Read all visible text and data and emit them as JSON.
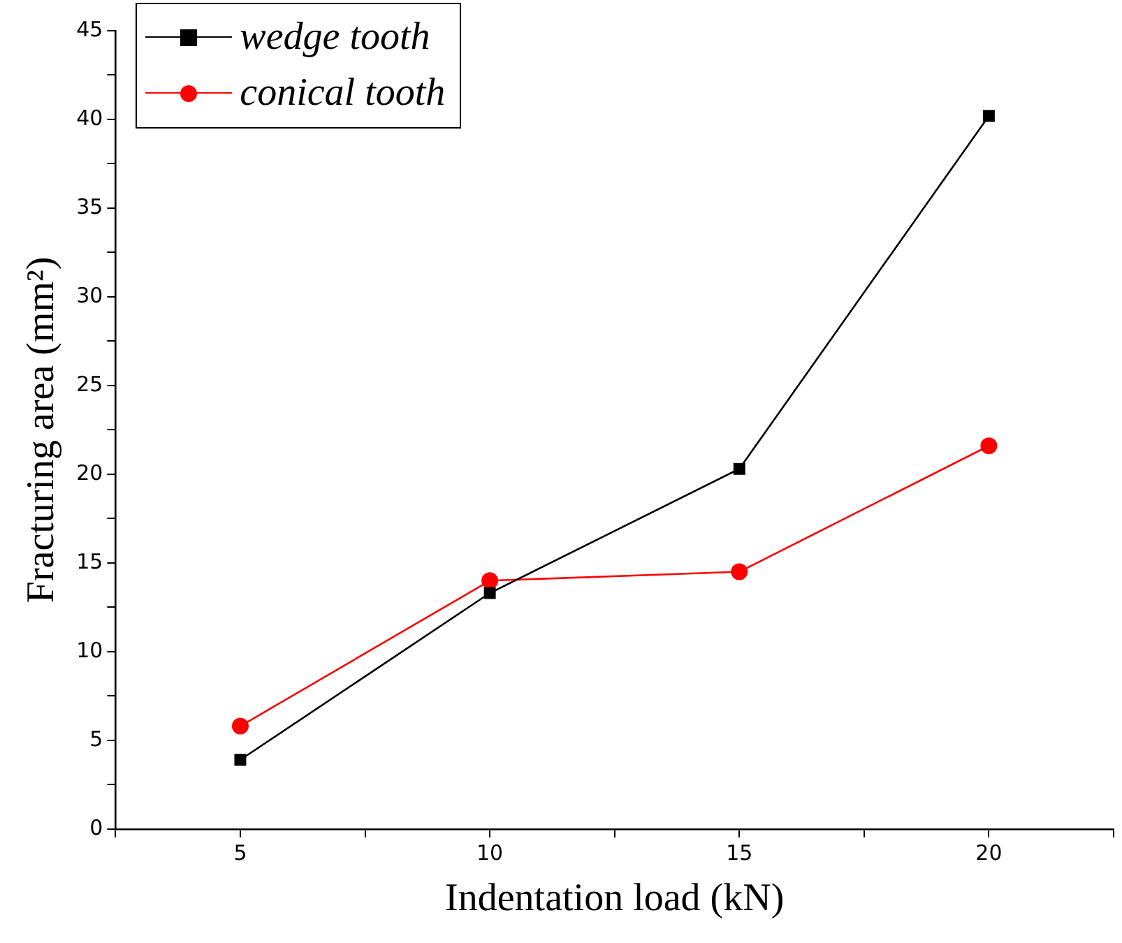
{
  "chart_data": {
    "type": "line",
    "xlabel": "Indentation load (kN)",
    "ylabel": "Fracturing area (mm²)",
    "x": [
      5,
      10,
      15,
      20
    ],
    "series": [
      {
        "name": "wedge tooth",
        "color": "#000000",
        "marker": "square",
        "values": [
          3.9,
          13.3,
          20.3,
          40.2
        ]
      },
      {
        "name": "conical tooth",
        "color": "#ff0000",
        "marker": "circle",
        "values": [
          5.8,
          14.0,
          14.5,
          21.6
        ]
      }
    ],
    "xlim": [
      2.5,
      22.5
    ],
    "xticks": [
      {
        "value": 2.5,
        "label": null
      },
      5,
      {
        "value": 7.5,
        "label": null
      },
      10,
      {
        "value": 12.5,
        "label": null
      },
      15,
      {
        "value": 17.5,
        "label": null
      },
      20,
      {
        "value": 22.5,
        "label": null
      }
    ],
    "ylim": [
      0,
      45
    ],
    "yticks": [
      0,
      {
        "value": 2.5,
        "label": null
      },
      5,
      {
        "value": 7.5,
        "label": null
      },
      10,
      {
        "value": 12.5,
        "label": null
      },
      15,
      {
        "value": 17.5,
        "label": null
      },
      20,
      {
        "value": 22.5,
        "label": null
      },
      25,
      {
        "value": 27.5,
        "label": null
      },
      30,
      {
        "value": 32.5,
        "label": null
      },
      35,
      {
        "value": 37.5,
        "label": null
      },
      40,
      {
        "value": 42.5,
        "label": null
      },
      45
    ],
    "grid": false,
    "legend": "top left",
    "line_style": "solid"
  }
}
